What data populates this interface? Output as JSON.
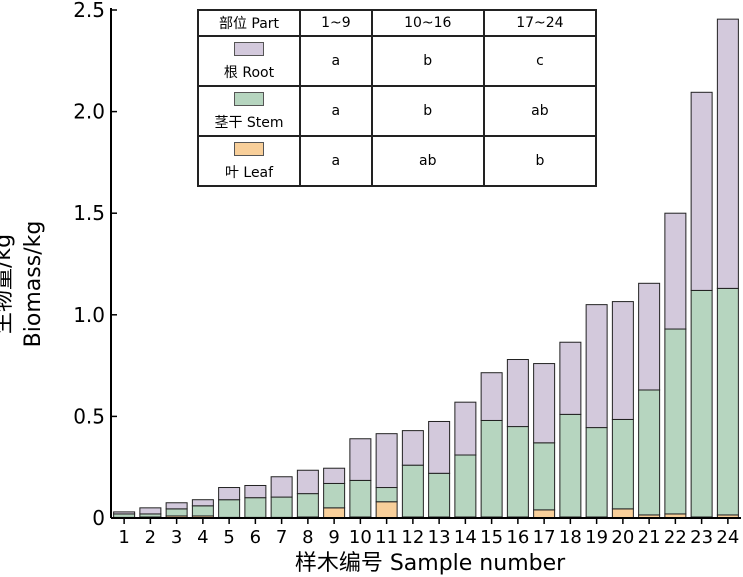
{
  "chart_data": {
    "type": "bar",
    "stacked": true,
    "ylabel_cn": "生物量/kg",
    "ylabel_en": "Biomass/kg",
    "xlabel": "样木编号 Sample number",
    "ylim": [
      0,
      2.5
    ],
    "yticks": [
      "0",
      "0.5",
      "1.0",
      "1.5",
      "2.0",
      "2.5"
    ],
    "ytick_values": [
      0,
      0.5,
      1.0,
      1.5,
      2.0,
      2.5
    ],
    "categories": [
      "1",
      "2",
      "3",
      "4",
      "5",
      "6",
      "7",
      "8",
      "9",
      "10",
      "11",
      "12",
      "13",
      "14",
      "15",
      "16",
      "17",
      "18",
      "19",
      "20",
      "21",
      "22",
      "23",
      "24"
    ],
    "series": [
      {
        "name": "叶 Leaf",
        "color": "#f8cf9a",
        "values": [
          0.003,
          0.005,
          0.01,
          0.01,
          0.003,
          0.003,
          0.003,
          0.005,
          0.05,
          0.005,
          0.08,
          0.005,
          0.005,
          0.005,
          0.005,
          0.005,
          0.04,
          0.005,
          0.005,
          0.045,
          0.015,
          0.02,
          0.005,
          0.015
        ]
      },
      {
        "name": "茎干 Stem",
        "color": "#b6d5bf",
        "values": [
          0.017,
          0.015,
          0.035,
          0.05,
          0.087,
          0.097,
          0.1,
          0.115,
          0.12,
          0.18,
          0.07,
          0.255,
          0.215,
          0.305,
          0.475,
          0.445,
          0.33,
          0.505,
          0.44,
          0.44,
          0.615,
          0.91,
          1.115,
          1.115
        ]
      },
      {
        "name": "根 Root",
        "color": "#d3c9dc",
        "values": [
          0.01,
          0.03,
          0.03,
          0.03,
          0.06,
          0.06,
          0.1,
          0.115,
          0.075,
          0.205,
          0.265,
          0.17,
          0.255,
          0.26,
          0.235,
          0.33,
          0.39,
          0.355,
          0.605,
          0.58,
          0.525,
          0.57,
          0.975,
          1.325
        ]
      }
    ]
  },
  "legend_table": {
    "header": [
      "部位 Part",
      "1~9",
      "10~16",
      "17~24"
    ],
    "rows": [
      {
        "label": "根 Root",
        "color": "#d3c9dc",
        "values": [
          "a",
          "b",
          "c"
        ]
      },
      {
        "label": "茎干 Stem",
        "color": "#b6d5bf",
        "values": [
          "a",
          "b",
          "ab"
        ]
      },
      {
        "label": "叶 Leaf",
        "color": "#f8cf9a",
        "values": [
          "a",
          "ab",
          "b"
        ]
      }
    ]
  }
}
